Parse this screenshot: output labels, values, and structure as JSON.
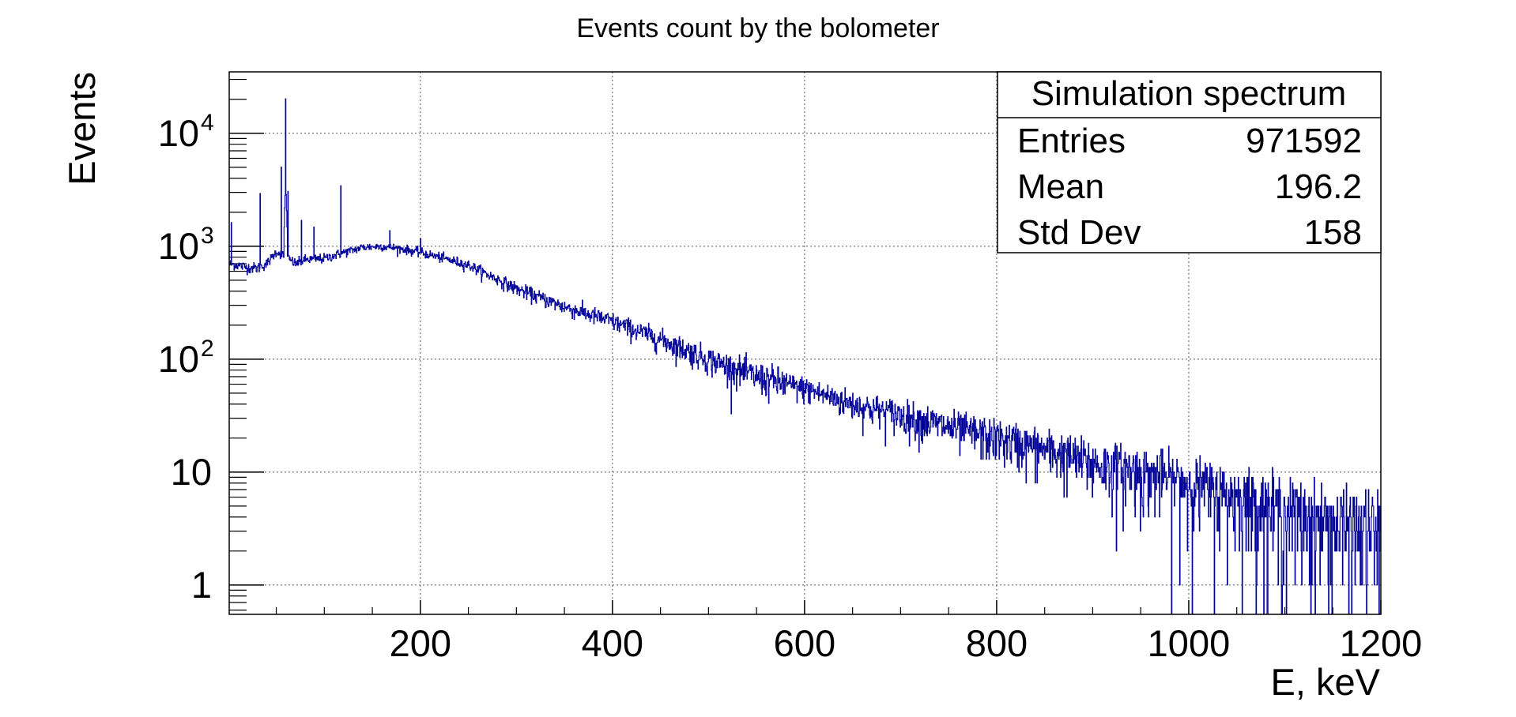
{
  "chart_data": {
    "type": "line",
    "title": "Events count by the bolometer",
    "xlabel": "E, keV",
    "ylabel": "Events",
    "xlim": [
      1,
      1200
    ],
    "ylim": [
      0.55,
      35000
    ],
    "yscale": "log",
    "grid": true,
    "line_color": "#000099",
    "x_ticks": [
      200,
      400,
      600,
      800,
      1000,
      1200
    ],
    "y_ticks": [
      {
        "value": 1,
        "label": "1"
      },
      {
        "value": 10,
        "label": "10"
      },
      {
        "value": 100,
        "label": "10",
        "exp": "2"
      },
      {
        "value": 1000,
        "label": "10",
        "exp": "3"
      },
      {
        "value": 10000,
        "label": "10",
        "exp": "4"
      }
    ],
    "envelope": {
      "x": [
        1,
        10,
        20,
        30,
        40,
        50,
        60,
        70,
        80,
        100,
        120,
        140,
        160,
        180,
        200,
        220,
        250,
        300,
        350,
        400,
        450,
        500,
        550,
        600,
        650,
        700,
        750,
        800,
        850,
        900,
        950,
        1000,
        1050,
        1100,
        1150,
        1200
      ],
      "y": [
        700,
        680,
        650,
        640,
        700,
        900,
        800,
        700,
        760,
        780,
        880,
        980,
        1000,
        950,
        880,
        800,
        680,
        420,
        290,
        215,
        150,
        100,
        70,
        55,
        40,
        32,
        25,
        20,
        16,
        12,
        10,
        8,
        6,
        4.5,
        3.5,
        3
      ]
    },
    "peaks": [
      {
        "x": 3,
        "y": 1600
      },
      {
        "x": 33,
        "y": 3000
      },
      {
        "x": 55,
        "y": 5000
      },
      {
        "x": 59.5,
        "y": 20000
      },
      {
        "x": 62,
        "y": 3000
      },
      {
        "x": 76,
        "y": 1700
      },
      {
        "x": 89,
        "y": 1400
      },
      {
        "x": 117,
        "y": 3500
      },
      {
        "x": 168,
        "y": 1300
      },
      {
        "x": 200,
        "y": 1200
      }
    ],
    "legend": {
      "position": "top-right",
      "title": "Simulation spectrum",
      "rows": [
        {
          "label": "Entries",
          "value": "971592"
        },
        {
          "label": "Mean",
          "value": "196.2"
        },
        {
          "label": "Std Dev",
          "value": "158"
        }
      ]
    }
  }
}
